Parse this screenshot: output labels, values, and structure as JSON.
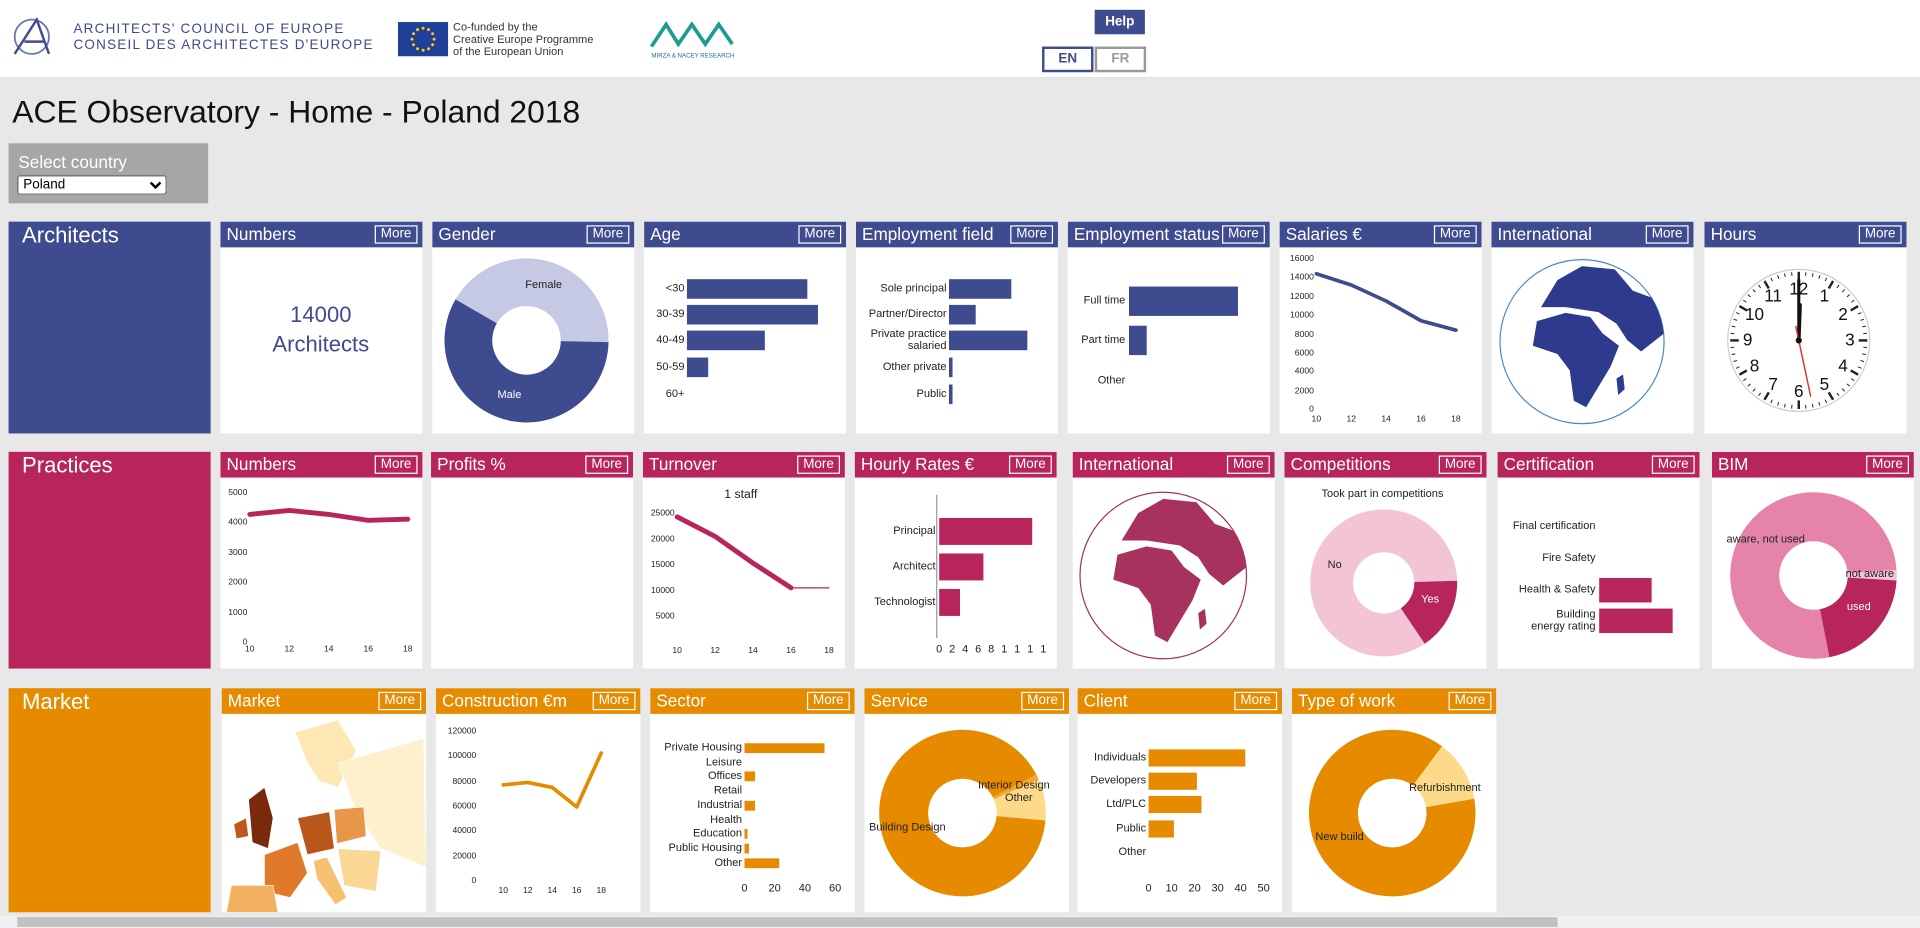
{
  "header": {
    "ace_line1": "ARCHITECTS' COUNCIL OF EUROPE",
    "ace_line2": "CONSEIL DES ARCHITECTES D'EUROPE",
    "eu_lines": [
      "Co-funded by the",
      "Creative Europe Programme",
      "of the European Union"
    ],
    "mnr": "MIRZA & NACEY RESEARCH",
    "help": "Help",
    "languages": [
      "EN",
      "FR"
    ]
  },
  "title": "ACE Observatory - Home - Poland 2018",
  "country_select": {
    "label": "Select country",
    "value": "Poland"
  },
  "sections": [
    {
      "name": "Architects",
      "tiles": [
        {
          "title": "Numbers",
          "button": "More",
          "chart": {
            "type": "text",
            "lines": [
              "14000",
              "Architects"
            ],
            "color": "#3f4b8f"
          }
        },
        {
          "title": "Gender",
          "button": "More",
          "chart": {
            "type": "donut",
            "categories": [
              "Female",
              "Male"
            ],
            "values": [
              42,
              58
            ],
            "colors": [
              "#c5c9e4",
              "#3f4b8f"
            ]
          }
        },
        {
          "title": "Age",
          "button": "More",
          "chart": {
            "type": "hbar",
            "categories": [
              "<30",
              "30-39",
              "40-49",
              "50-59",
              "60+"
            ],
            "values": [
              34,
              37,
              22,
              6,
              0
            ],
            "color": "#3f4b8f"
          }
        },
        {
          "title": "Employment field",
          "button": "More",
          "chart": {
            "type": "hbar",
            "categories": [
              "Sole principal",
              "Partner/Director",
              "Private practice\nsalaried",
              "Other private",
              "Public"
            ],
            "values": [
              35,
              15,
              44,
              2,
              2
            ],
            "color": "#3f4b8f"
          }
        },
        {
          "title": "Employment status",
          "button": "More",
          "chart": {
            "type": "hbar",
            "categories": [
              "Full time",
              "Part time",
              "Other"
            ],
            "values": [
              86,
              14,
              0
            ],
            "color": "#3f4b8f"
          }
        },
        {
          "title": "Salaries €",
          "button": "More",
          "chart": {
            "type": "line",
            "x": [
              10,
              12,
              14,
              16,
              18
            ],
            "values": [
              14500,
              13300,
              11600,
              9500,
              8500
            ],
            "xlim": [
              10,
              18
            ],
            "xticks": [
              10,
              12,
              14,
              16,
              18
            ],
            "ylim": [
              0,
              16000
            ],
            "yticks": [
              0,
              2000,
              4000,
              6000,
              8000,
              10000,
              12000,
              14000,
              16000
            ],
            "color": "#3f4b8f"
          }
        },
        {
          "title": "International",
          "button": "More",
          "chart": {
            "type": "globe",
            "color": "#2e3a8c"
          }
        },
        {
          "title": "Hours",
          "button": "More",
          "chart": {
            "type": "clock",
            "numbers": [
              12,
              1,
              2,
              3,
              4,
              5,
              6,
              7,
              8,
              9,
              10,
              11
            ]
          }
        }
      ]
    },
    {
      "name": "Practices",
      "tiles": [
        {
          "title": "Numbers",
          "button": "More",
          "chart": {
            "type": "line",
            "x": [
              10,
              12,
              14,
              16,
              18
            ],
            "values": [
              4300,
              4430,
              4300,
              4100,
              4140
            ],
            "xlim": [
              10,
              18
            ],
            "xticks": [
              10,
              12,
              14,
              16,
              18
            ],
            "ylim": [
              0,
              5000
            ],
            "yticks": [
              0,
              1000,
              2000,
              3000,
              4000,
              5000
            ],
            "color": "#b8245c"
          }
        },
        {
          "title": "Profits %",
          "button": "More"
        },
        {
          "title": "Turnover",
          "button": "More",
          "chart": {
            "type": "line",
            "subtitle": "1 staff",
            "x": [
              10,
              12,
              14,
              16,
              18
            ],
            "values": [
              24500,
              20700,
              15500,
              10700,
              10700
            ],
            "xlim": [
              10,
              18
            ],
            "xticks": [
              10,
              12,
              14,
              16,
              18
            ],
            "ylim": [
              0,
              25000
            ],
            "yticks": [
              5000,
              10000,
              15000,
              20000,
              25000
            ],
            "color": "#b8245c"
          }
        },
        {
          "title": "Hourly Rates €",
          "button": "More",
          "chart": {
            "type": "hbar",
            "categories": [
              "Principal",
              "Architect",
              "Technologist"
            ],
            "values": [
              14.3,
              6.8,
              3.2
            ],
            "xlim": [
              0,
              16
            ],
            "xticks": [
              0,
              2,
              4,
              6,
              8,
              {
                "value": 10,
                "label": "1"
              },
              {
                "value": 12,
                "label": "1"
              },
              {
                "value": 14,
                "label": "1"
              },
              {
                "value": 16,
                "label": "1"
              }
            ],
            "color": "#b8245c"
          }
        },
        {
          "title": "International",
          "button": "More",
          "chart": {
            "type": "globe",
            "color": "#a8325e"
          }
        },
        {
          "title": "Competitions",
          "button": "More",
          "chart": {
            "type": "donut",
            "subtitle": "Took part in competitions",
            "categories": [
              "No",
              "Yes"
            ],
            "values": [
              84,
              16
            ],
            "colors": [
              "#f2c4d6",
              "#b8245c"
            ]
          }
        },
        {
          "title": "Certification",
          "button": "More",
          "chart": {
            "type": "hbar",
            "categories": [
              "Final certification",
              "Fire Safety",
              "Health & Safety",
              "Building\nenergy rating"
            ],
            "values": [
              0,
              0,
              30,
              42
            ],
            "color": "#b8245c"
          }
        },
        {
          "title": "BIM",
          "button": "More",
          "chart": {
            "type": "donut",
            "categories": [
              "aware, not used",
              "not aware",
              "used"
            ],
            "values": [
              77,
              2,
              21
            ],
            "colors": [
              "#e583aa",
              "#f2c4d6",
              "#b8245c"
            ]
          }
        }
      ]
    },
    {
      "name": "Market",
      "tiles": [
        {
          "title": "Market",
          "button": "More",
          "chart": {
            "type": "map"
          }
        },
        {
          "title": "Construction €m",
          "button": "More",
          "chart": {
            "type": "line",
            "x": [
              10,
              12,
              14,
              16,
              18
            ],
            "values": [
              77700,
              79700,
              75700,
              60000,
              103300
            ],
            "xlim": [
              10,
              18
            ],
            "xticks": [
              10,
              12,
              14,
              16,
              18
            ],
            "ylim": [
              0,
              120000
            ],
            "yticks": [
              0,
              20000,
              40000,
              60000,
              80000,
              100000,
              120000
            ],
            "color": "#e68a00"
          }
        },
        {
          "title": "Sector",
          "button": "More",
          "chart": {
            "type": "hbar",
            "categories": [
              "Private Housing",
              "Leisure",
              "Offices",
              "Retail",
              "Industrial",
              "Health",
              "Education",
              "Public Housing",
              "Other"
            ],
            "values": [
              53,
              0,
              7,
              0,
              7,
              0,
              2,
              3,
              23
            ],
            "xlim": [
              0,
              60
            ],
            "xticks": [
              0,
              20,
              40,
              60
            ],
            "color": "#e68a00"
          }
        },
        {
          "title": "Service",
          "button": "More",
          "chart": {
            "type": "donut",
            "categories": [
              "Building Design",
              "Interior Design",
              "Other"
            ],
            "values": [
              91,
              1,
              8
            ],
            "colors": [
              "#e68a00",
              "#f0a830",
              "#fdd98a"
            ]
          }
        },
        {
          "title": "Client",
          "button": "More",
          "chart": {
            "type": "hbar",
            "categories": [
              "Individuals",
              "Developers",
              "Ltd/PLC",
              "Public",
              "Other"
            ],
            "values": [
              42,
              21,
              23,
              11,
              0
            ],
            "xlim": [
              0,
              50
            ],
            "xticks": [
              0,
              10,
              20,
              30,
              40,
              50
            ],
            "color": "#e68a00"
          }
        },
        {
          "title": "Type of work",
          "button": "More",
          "chart": {
            "type": "donut",
            "categories": [
              "New build",
              "Refurbishment"
            ],
            "values": [
              88,
              12
            ],
            "colors": [
              "#e68a00",
              "#fdd98a"
            ]
          }
        }
      ]
    }
  ]
}
